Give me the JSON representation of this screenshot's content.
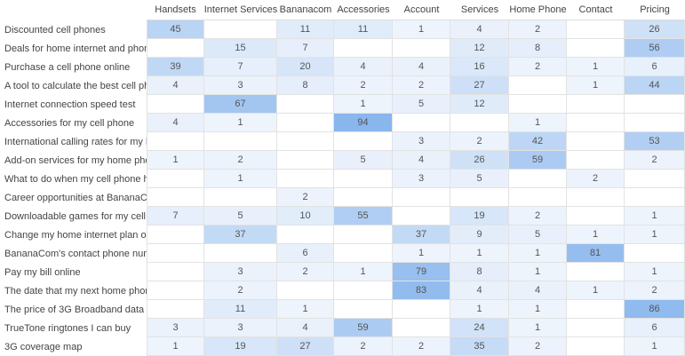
{
  "table": {
    "columns": [
      "Handsets",
      "Internet Services",
      "Bananacom",
      "Accessories",
      "Account",
      "Services",
      "Home Phone",
      "Contact",
      "Pricing"
    ],
    "rows": [
      {
        "label": "Discounted cell phones",
        "cells": [
          45,
          null,
          11,
          11,
          1,
          4,
          2,
          null,
          26
        ]
      },
      {
        "label": "Deals for home internet and phon...",
        "cells": [
          null,
          15,
          7,
          null,
          null,
          12,
          8,
          null,
          56
        ]
      },
      {
        "label": "Purchase a cell phone online",
        "cells": [
          39,
          7,
          20,
          4,
          4,
          16,
          2,
          1,
          6
        ]
      },
      {
        "label": "A tool to calculate the best cell ph...",
        "cells": [
          4,
          3,
          8,
          2,
          2,
          27,
          null,
          1,
          44
        ]
      },
      {
        "label": "Internet connection speed test",
        "cells": [
          null,
          67,
          null,
          1,
          5,
          12,
          null,
          null,
          null
        ]
      },
      {
        "label": "Accessories for my cell phone",
        "cells": [
          4,
          1,
          null,
          94,
          null,
          null,
          1,
          null,
          null
        ]
      },
      {
        "label": "International calling rates for my h...",
        "cells": [
          null,
          null,
          null,
          null,
          3,
          2,
          42,
          null,
          53
        ]
      },
      {
        "label": "Add-on services for my home pho...",
        "cells": [
          1,
          2,
          null,
          5,
          4,
          26,
          59,
          null,
          2
        ]
      },
      {
        "label": "What to do when my cell phone h...",
        "cells": [
          null,
          1,
          null,
          null,
          3,
          5,
          null,
          2,
          null
        ]
      },
      {
        "label": "Career opportunities at BananaCo...",
        "cells": [
          null,
          null,
          2,
          null,
          null,
          null,
          null,
          null,
          null
        ]
      },
      {
        "label": "Downloadable games for my cell...",
        "cells": [
          7,
          5,
          10,
          55,
          null,
          19,
          2,
          null,
          1
        ]
      },
      {
        "label": "Change my home internet plan on...",
        "cells": [
          null,
          37,
          null,
          null,
          37,
          9,
          5,
          1,
          1
        ]
      },
      {
        "label": "BananaCom's contact phone num...",
        "cells": [
          null,
          null,
          6,
          null,
          1,
          1,
          1,
          81,
          null
        ]
      },
      {
        "label": "Pay my bill online",
        "cells": [
          null,
          3,
          2,
          1,
          79,
          8,
          1,
          null,
          1
        ]
      },
      {
        "label": "The date that my next home phon...",
        "cells": [
          null,
          2,
          null,
          null,
          83,
          4,
          4,
          1,
          2
        ]
      },
      {
        "label": "The price of 3G Broadband data",
        "cells": [
          null,
          11,
          1,
          null,
          null,
          1,
          1,
          null,
          86
        ]
      },
      {
        "label": "TrueTone ringtones I can buy",
        "cells": [
          3,
          3,
          4,
          59,
          null,
          24,
          1,
          null,
          6
        ]
      },
      {
        "label": "3G coverage map",
        "cells": [
          1,
          19,
          27,
          2,
          2,
          35,
          2,
          null,
          1
        ]
      }
    ]
  }
}
